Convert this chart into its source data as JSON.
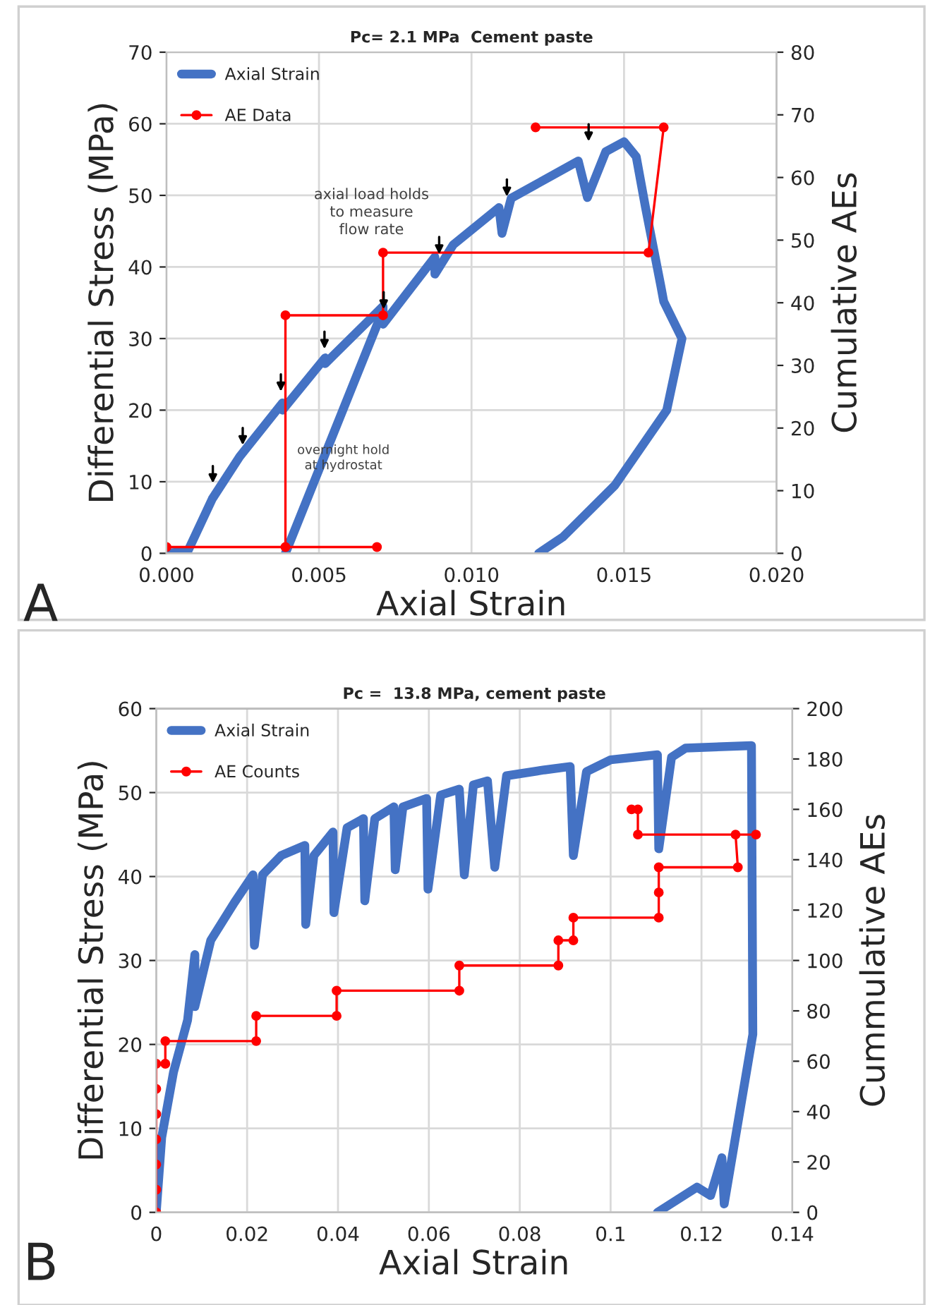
{
  "chart_data": [
    {
      "type": "line",
      "title": "Pc= 2.1 MPa  Cement paste",
      "xlabel": "Axial Strain",
      "ylabel": "Differential Stress (MPa)",
      "y2label": "Cumulative AEs",
      "series": [
        {
          "name": "Axial Strain",
          "color": "#4472c4",
          "x": [
            0,
            0.0007,
            0.0015,
            0.0024,
            0.0038,
            0.0038,
            0.0052,
            0.0052,
            0.0071,
            0.0071,
            0.0088,
            0.0088,
            0.0094,
            0.0109,
            0.011,
            0.0113,
            0.0135,
            0.0138,
            0.0144,
            0.015,
            0.0154,
            0.0157,
            0.0162,
            0.0163,
            0.0169,
            0.0164,
            0.0147,
            0.013,
            0.0122
          ],
          "values": [
            0,
            0.3,
            7.6,
            13.5,
            21,
            20,
            27.3,
            26.5,
            34.5,
            32,
            41.4,
            39,
            43.1,
            48.3,
            44.7,
            49.6,
            54.8,
            49.7,
            56.1,
            57.5,
            55.4,
            48.4,
            37.5,
            35.2,
            30,
            20,
            9.5,
            2.3,
            0
          ]
        },
        {
          "color": "#4472c4",
          "x": [
            0.0039,
            0.0071
          ],
          "values": [
            0,
            34
          ]
        },
        {
          "name": "AE Data",
          "color": "#ff0000",
          "axis": "y2",
          "marker": "circle",
          "x": [
            0,
            0.0069,
            0.0039,
            0.0039,
            0.0071,
            0.0071,
            0.0158,
            0.0163,
            0.0121
          ],
          "values": [
            1,
            1,
            1,
            38,
            38,
            48,
            48,
            68,
            68
          ]
        }
      ],
      "xlim": [
        0,
        0.02
      ],
      "xticks": [
        {
          "value": 0,
          "label": "0.000"
        },
        {
          "value": 0.005,
          "label": "0.005"
        },
        {
          "value": 0.01,
          "label": "0.010"
        },
        {
          "value": 0.015,
          "label": "0.015"
        },
        {
          "value": 0.02,
          "label": "0.020"
        }
      ],
      "ylim": [
        0,
        70
      ],
      "yticks": [
        0,
        10,
        20,
        30,
        40,
        50,
        60,
        70
      ],
      "y2lim": [
        0,
        80
      ],
      "y2ticks": [
        0,
        10,
        20,
        30,
        40,
        50,
        60,
        70,
        80
      ],
      "grid": true,
      "legend": "top left",
      "annotations": [
        "axial load holds\nto measure\nflow rate",
        "overnight hold\nat hydrostat",
        "A"
      ]
    },
    {
      "type": "line",
      "title": "Pc =  13.8 MPa, cement paste",
      "xlabel": "Axial Strain",
      "ylabel": "Differential Stress (MPa)",
      "y2label": "Cummulative AEs",
      "series": [
        {
          "name": "Axial Strain",
          "color": "#4472c4",
          "x": [
            0,
            0.0012,
            0.0038,
            0.0069,
            0.0085,
            0.0085,
            0.012,
            0.0172,
            0.0213,
            0.0216,
            0.0234,
            0.0275,
            0.0327,
            0.0329,
            0.0347,
            0.0389,
            0.0391,
            0.042,
            0.0456,
            0.0459,
            0.0481,
            0.0523,
            0.0526,
            0.0543,
            0.0595,
            0.0598,
            0.0626,
            0.0667,
            0.0678,
            0.0698,
            0.0729,
            0.0745,
            0.0771,
            0.0854,
            0.0911,
            0.0918,
            0.0947,
            0.1,
            0.1103,
            0.1106,
            0.1134,
            0.1165,
            0.131,
            0.1313,
            0.125,
            0.1245,
            0.122,
            0.119,
            0.1103
          ],
          "values": [
            0,
            8.9,
            16.7,
            22.9,
            30.7,
            24.5,
            32.4,
            36.9,
            40.2,
            31.8,
            40.2,
            42.5,
            43.7,
            34.3,
            42.5,
            45.3,
            35.7,
            45.8,
            46.9,
            37.1,
            46.9,
            48.3,
            40.8,
            48.3,
            49.3,
            38.5,
            49.7,
            50.4,
            40.2,
            50.9,
            51.4,
            41.1,
            52,
            52.7,
            53.1,
            42.5,
            52.5,
            53.9,
            54.5,
            43.3,
            54.2,
            55.3,
            55.6,
            21.2,
            1,
            6.5,
            2,
            3,
            0
          ]
        },
        {
          "name": "AE Counts",
          "color": "#ff0000",
          "axis": "y2",
          "marker": "circle",
          "x": [
            0,
            0,
            0,
            0,
            0,
            0,
            0,
            0.002,
            0.002,
            0.022,
            0.022,
            0.0397,
            0.0397,
            0.0667,
            0.0667,
            0.0885,
            0.0885,
            0.0918,
            0.0918,
            0.1106,
            0.1106,
            0.1106,
            0.128,
            0.1275,
            0.132,
            0.106,
            0.106,
            0.1046
          ],
          "values": [
            0,
            9,
            19,
            29,
            39,
            49,
            59,
            59,
            68,
            68,
            78,
            78,
            88,
            88,
            98,
            98,
            108,
            108,
            117,
            117,
            127,
            137,
            137,
            150,
            150,
            150,
            160,
            160
          ]
        }
      ],
      "xlim": [
        0,
        0.14
      ],
      "xticks": [
        0,
        0.02,
        0.04,
        0.06,
        0.08,
        0.1,
        0.12,
        0.14
      ],
      "ylim": [
        0,
        60
      ],
      "yticks": [
        0,
        10,
        20,
        30,
        40,
        50,
        60
      ],
      "y2lim": [
        0,
        200
      ],
      "y2ticks": [
        0,
        20,
        40,
        60,
        80,
        100,
        120,
        140,
        160,
        180,
        200
      ],
      "grid": true,
      "legend": "top left",
      "annotations": [
        "B"
      ]
    }
  ]
}
